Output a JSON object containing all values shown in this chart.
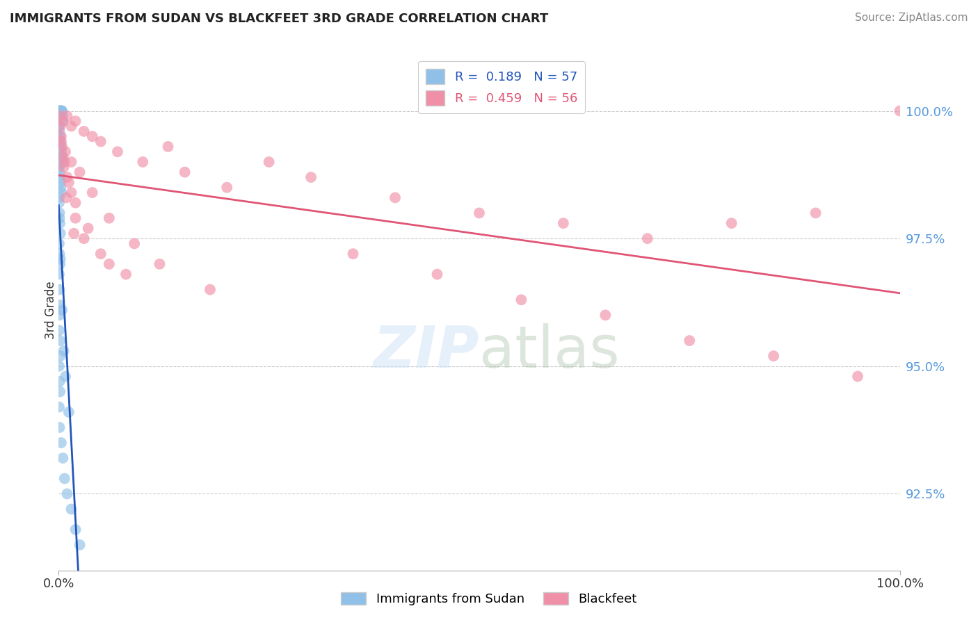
{
  "title": "IMMIGRANTS FROM SUDAN VS BLACKFEET 3RD GRADE CORRELATION CHART",
  "source": "Source: ZipAtlas.com",
  "ylabel": "3rd Grade",
  "legend_label_1": "Immigrants from Sudan",
  "legend_label_2": "Blackfeet",
  "r1": 0.189,
  "n1": 57,
  "r2": 0.459,
  "n2": 56,
  "color_blue": "#90C0E8",
  "color_pink": "#F090A8",
  "trendline_blue": "#2255BB",
  "trendline_pink": "#E05575",
  "ymin": 91.0,
  "ymax": 101.2,
  "xmin": 0.0,
  "xmax": 100.0,
  "yticks": [
    92.5,
    95.0,
    97.5,
    100.0
  ],
  "ytick_color": "#5599DD",
  "background": "#FFFFFF",
  "sudan_x": [
    0.05,
    0.1,
    0.15,
    0.2,
    0.25,
    0.3,
    0.35,
    0.4,
    0.45,
    0.5,
    0.05,
    0.1,
    0.15,
    0.2,
    0.25,
    0.3,
    0.35,
    0.4,
    0.05,
    0.1,
    0.15,
    0.2,
    0.25,
    0.3,
    0.05,
    0.1,
    0.15,
    0.2,
    0.05,
    0.1,
    0.15,
    0.05,
    0.1,
    0.05,
    0.1,
    0.05,
    0.15,
    0.2,
    0.05,
    0.1,
    0.15,
    0.05,
    0.1,
    0.3,
    0.5,
    0.7,
    1.0,
    1.5,
    2.0,
    2.5,
    0.05,
    0.1,
    0.2,
    0.4,
    0.6,
    0.8,
    1.2
  ],
  "sudan_y": [
    100.0,
    100.0,
    100.0,
    100.0,
    100.0,
    100.0,
    100.0,
    100.0,
    99.9,
    99.8,
    99.7,
    99.6,
    99.5,
    99.4,
    99.3,
    99.2,
    99.1,
    99.0,
    98.9,
    98.8,
    98.7,
    98.6,
    98.5,
    98.4,
    98.2,
    98.0,
    97.8,
    97.6,
    97.4,
    97.2,
    97.0,
    96.8,
    96.5,
    96.2,
    96.0,
    95.7,
    95.5,
    95.2,
    95.0,
    94.7,
    94.5,
    94.2,
    93.8,
    93.5,
    93.2,
    92.8,
    92.5,
    92.2,
    91.8,
    91.5,
    98.3,
    97.9,
    97.1,
    96.1,
    95.3,
    94.8,
    94.1
  ],
  "blackfeet_x": [
    0.2,
    0.5,
    1.0,
    1.5,
    2.0,
    3.0,
    4.0,
    5.0,
    7.0,
    10.0,
    13.0,
    15.0,
    20.0,
    25.0,
    30.0,
    40.0,
    50.0,
    60.0,
    70.0,
    80.0,
    90.0,
    100.0,
    0.3,
    0.8,
    1.5,
    2.5,
    4.0,
    6.0,
    9.0,
    12.0,
    18.0,
    0.4,
    0.7,
    1.2,
    2.0,
    3.5,
    35.0,
    45.0,
    55.0,
    65.0,
    75.0,
    85.0,
    95.0,
    0.6,
    1.8,
    8.0,
    0.2,
    0.9,
    5.0,
    0.3,
    1.0,
    2.0,
    0.5,
    1.5,
    3.0,
    6.0
  ],
  "blackfeet_y": [
    99.9,
    99.8,
    99.9,
    99.7,
    99.8,
    99.6,
    99.5,
    99.4,
    99.2,
    99.0,
    99.3,
    98.8,
    98.5,
    99.0,
    98.7,
    98.3,
    98.0,
    97.8,
    97.5,
    97.8,
    98.0,
    100.0,
    99.5,
    99.2,
    99.0,
    98.8,
    98.4,
    97.9,
    97.4,
    97.0,
    96.5,
    99.3,
    99.0,
    98.6,
    98.2,
    97.7,
    97.2,
    96.8,
    96.3,
    96.0,
    95.5,
    95.2,
    94.8,
    98.9,
    97.6,
    96.8,
    99.7,
    98.3,
    97.2,
    99.4,
    98.7,
    97.9,
    99.1,
    98.4,
    97.5,
    97.0
  ]
}
